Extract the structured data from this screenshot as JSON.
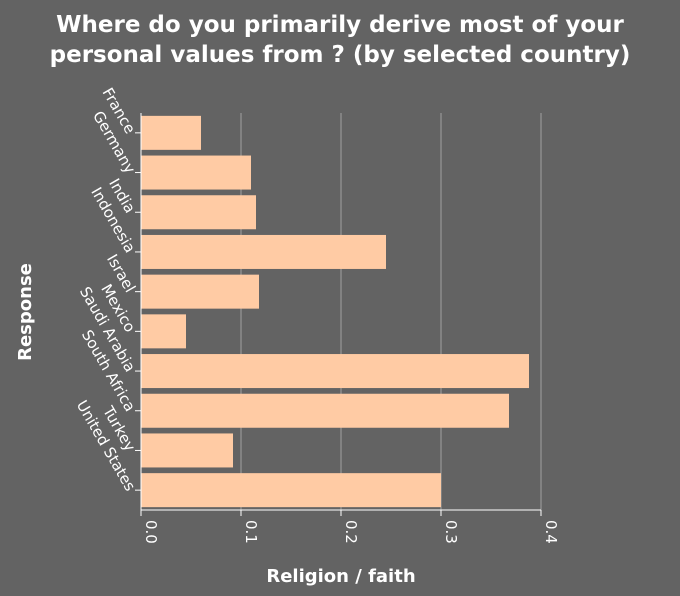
{
  "chart_data": {
    "type": "bar",
    "orientation": "horizontal",
    "title": "Where do you primarily derive most of your personal values from ? (by selected country)",
    "xlabel": "Religion / faith",
    "ylabel": "Response",
    "categories": [
      "France",
      "Germany",
      "India",
      "Indonesia",
      "Israel",
      "Mexico",
      "Saudi Arabia",
      "South Africa",
      "Turkey",
      "United States"
    ],
    "values": [
      0.06,
      0.11,
      0.115,
      0.245,
      0.118,
      0.045,
      0.388,
      0.368,
      0.092,
      0.3
    ],
    "xlim": [
      0,
      0.4
    ],
    "xticks": [
      "0.0",
      "0.1",
      "0.2",
      "0.3",
      "0.4"
    ],
    "grid": true,
    "colors": {
      "background": "#636363",
      "bar": "#ffcba4",
      "grid": "#a0a0a0",
      "text": "#ffffff"
    }
  }
}
